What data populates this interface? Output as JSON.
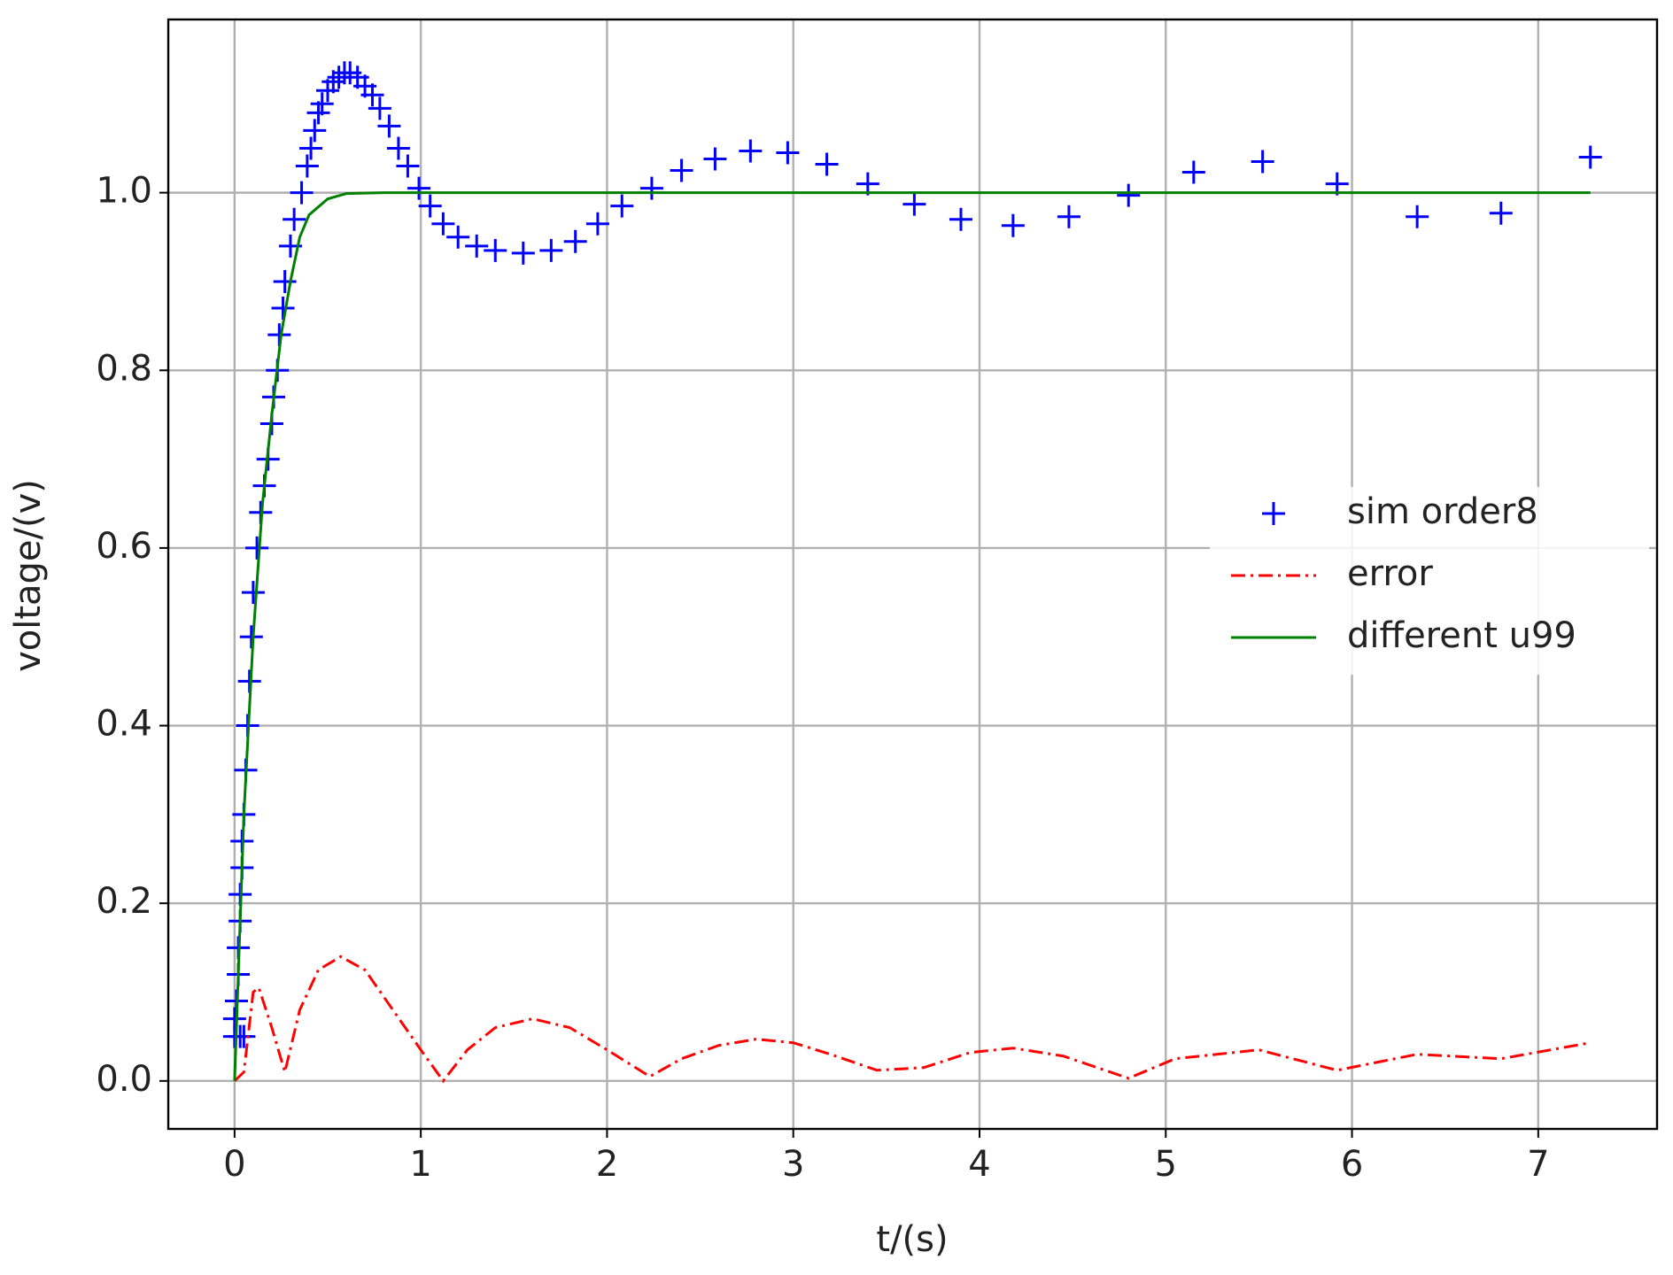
{
  "chart_data": {
    "type": "line",
    "xlabel": "t/(s)",
    "ylabel": "voltage/(v)",
    "xlim": [
      -0.356,
      7.638
    ],
    "ylim": [
      -0.054,
      1.195
    ],
    "xticks": [
      0,
      1,
      2,
      3,
      4,
      5,
      6,
      7
    ],
    "yticks": [
      {
        "value": 0,
        "label": "0.0"
      },
      {
        "value": 0.2,
        "label": "0.2"
      },
      {
        "value": 0.4,
        "label": "0.4"
      },
      {
        "value": 0.6,
        "label": "0.6"
      },
      {
        "value": 0.8,
        "label": "0.8"
      },
      {
        "value": 1,
        "label": "1.0"
      }
    ],
    "grid": true,
    "legend": "center right",
    "series": [
      {
        "name": "sim order8",
        "color": "#0000ff",
        "style": "scatter",
        "x": [
          0.0,
          0.0,
          0.01,
          0.02,
          0.02,
          0.03,
          0.03,
          0.03,
          0.04,
          0.04,
          0.05,
          0.05,
          0.06,
          0.07,
          0.08,
          0.09,
          0.1,
          0.12,
          0.14,
          0.16,
          0.18,
          0.2,
          0.21,
          0.23,
          0.24,
          0.26,
          0.27,
          0.3,
          0.32,
          0.36,
          0.39,
          0.41,
          0.43,
          0.45,
          0.47,
          0.5,
          0.53,
          0.56,
          0.59,
          0.62,
          0.66,
          0.7,
          0.74,
          0.78,
          0.83,
          0.88,
          0.93,
          0.99,
          1.05,
          1.12,
          1.2,
          1.3,
          1.4,
          1.55,
          1.7,
          1.83,
          1.95,
          2.08,
          2.24,
          2.4,
          2.58,
          2.77,
          2.97,
          3.18,
          3.4,
          3.65,
          3.9,
          4.18,
          4.48,
          4.8,
          5.15,
          5.52,
          5.92,
          6.35,
          6.8,
          7.28
        ],
        "values": [
          0.05,
          0.07,
          0.09,
          0.12,
          0.15,
          0.05,
          0.18,
          0.21,
          0.24,
          0.27,
          0.3,
          0.05,
          0.35,
          0.4,
          0.45,
          0.5,
          0.55,
          0.6,
          0.64,
          0.67,
          0.7,
          0.74,
          0.77,
          0.8,
          0.84,
          0.87,
          0.9,
          0.94,
          0.97,
          1.0,
          1.03,
          1.05,
          1.07,
          1.09,
          1.1,
          1.115,
          1.125,
          1.13,
          1.135,
          1.135,
          1.13,
          1.12,
          1.11,
          1.095,
          1.075,
          1.05,
          1.03,
          1.005,
          0.985,
          0.965,
          0.95,
          0.94,
          0.935,
          0.932,
          0.935,
          0.945,
          0.965,
          0.985,
          1.005,
          1.025,
          1.038,
          1.047,
          1.045,
          1.032,
          1.01,
          0.987,
          0.97,
          0.963,
          0.973,
          0.997,
          1.023,
          1.035,
          1.01,
          0.973,
          0.977,
          1.04
        ]
      },
      {
        "name": "error",
        "color": "#ff0000",
        "style": "dashdot",
        "x": [
          0,
          0.05,
          0.1,
          0.13,
          0.2,
          0.27,
          0.35,
          0.45,
          0.57,
          0.7,
          0.85,
          1.0,
          1.12,
          1.25,
          1.4,
          1.6,
          1.8,
          2.0,
          2.23,
          2.4,
          2.6,
          2.8,
          3.0,
          3.2,
          3.45,
          3.7,
          3.95,
          4.18,
          4.45,
          4.8,
          5.05,
          5.5,
          5.92,
          6.35,
          6.8,
          7.28
        ],
        "values": [
          0,
          0.01,
          0.1,
          0.105,
          0.06,
          0.01,
          0.08,
          0.125,
          0.14,
          0.125,
          0.08,
          0.035,
          0.0,
          0.035,
          0.06,
          0.07,
          0.06,
          0.035,
          0.005,
          0.025,
          0.04,
          0.047,
          0.043,
          0.03,
          0.012,
          0.015,
          0.032,
          0.037,
          0.028,
          0.003,
          0.025,
          0.035,
          0.012,
          0.03,
          0.025,
          0.043
        ]
      },
      {
        "name": "different u99",
        "color": "#008000",
        "style": "solid",
        "x": [
          0,
          0.05,
          0.1,
          0.15,
          0.2,
          0.25,
          0.3,
          0.35,
          0.4,
          0.5,
          0.6,
          0.8,
          7.28
        ],
        "values": [
          0,
          0.3,
          0.5,
          0.65,
          0.75,
          0.84,
          0.9,
          0.95,
          0.975,
          0.993,
          0.999,
          1.0,
          1.0
        ]
      }
    ]
  }
}
